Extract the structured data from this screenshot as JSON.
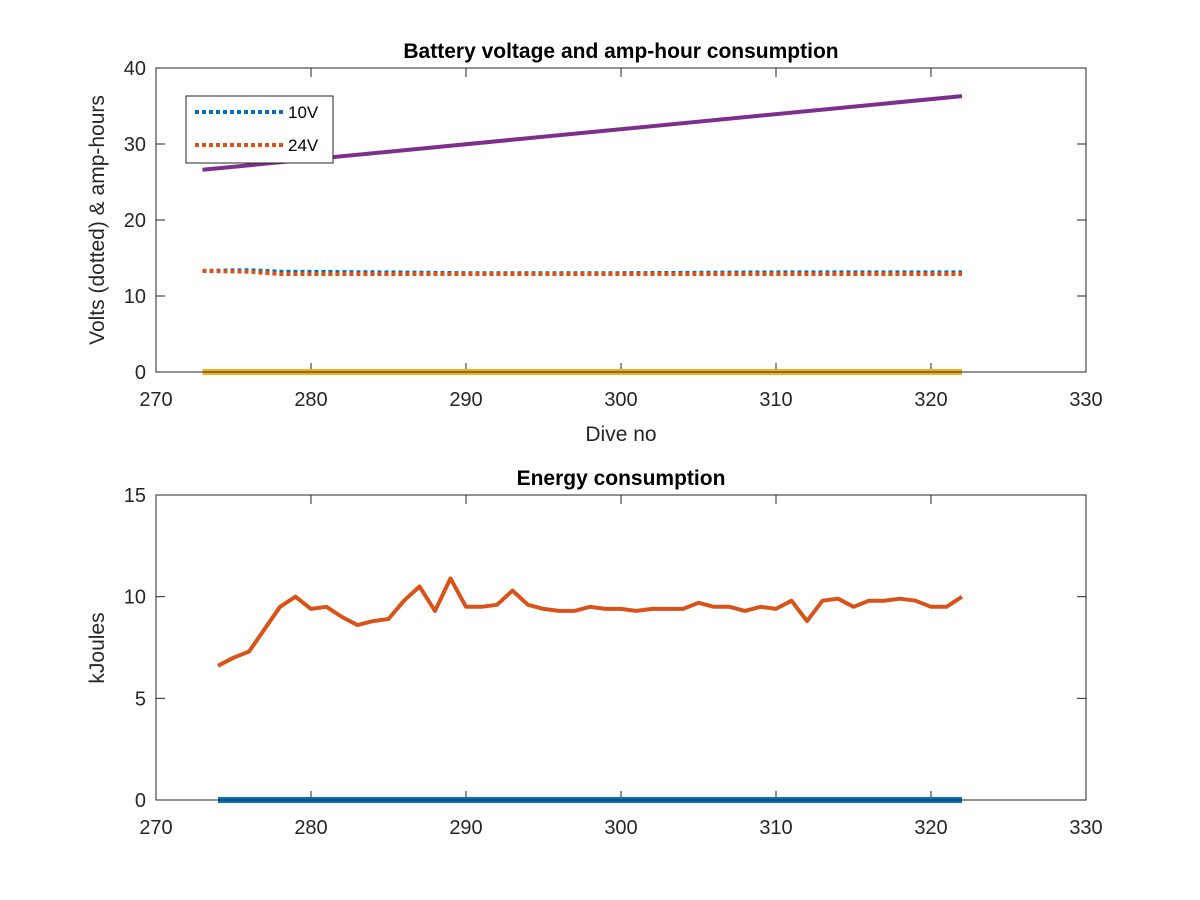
{
  "chart_data": [
    {
      "type": "line",
      "title": "Battery voltage and amp-hour consumption",
      "xlabel": "Dive no",
      "ylabel": "Volts (dotted) & amp-hours",
      "xlim": [
        270,
        330
      ],
      "ylim": [
        0,
        40
      ],
      "xticks": [
        270,
        280,
        290,
        300,
        310,
        320,
        330
      ],
      "yticks": [
        0,
        10,
        20,
        30,
        40
      ],
      "grid": false,
      "legend_position": "top-left",
      "series": [
        {
          "name": "10V",
          "style": "dotted",
          "color": "#0072BD",
          "x": [
            273,
            276,
            278,
            285,
            290,
            300,
            310,
            322
          ],
          "y": [
            13.3,
            13.4,
            13.2,
            13.1,
            13.0,
            13.0,
            13.1,
            13.1
          ]
        },
        {
          "name": "24V",
          "style": "dotted",
          "color": "#D95319",
          "x": [
            273,
            276,
            278,
            285,
            290,
            300,
            310,
            322
          ],
          "y": [
            13.3,
            13.2,
            12.9,
            12.9,
            12.9,
            12.9,
            12.9,
            12.9
          ]
        },
        {
          "style": "solid",
          "color": "#7E2F8E",
          "x": [
            273,
            322
          ],
          "y": [
            26.6,
            36.3
          ]
        },
        {
          "style": "solid",
          "color": "#EDB120",
          "x": [
            273,
            322
          ],
          "y": [
            0,
            0
          ]
        }
      ]
    },
    {
      "type": "line",
      "title": "Energy consumption",
      "xlabel": "",
      "ylabel": "kJoules",
      "xlim": [
        270,
        330
      ],
      "ylim": [
        0,
        15
      ],
      "xticks": [
        270,
        280,
        290,
        300,
        310,
        320,
        330
      ],
      "yticks": [
        0,
        5,
        10,
        15
      ],
      "grid": false,
      "series": [
        {
          "style": "solid",
          "color": "#0072BD",
          "x": [
            274,
            322
          ],
          "y": [
            0,
            0
          ]
        },
        {
          "style": "solid",
          "color": "#D95319",
          "x": [
            274,
            275,
            276,
            277,
            278,
            279,
            280,
            281,
            282,
            283,
            284,
            285,
            286,
            287,
            288,
            289,
            290,
            291,
            292,
            293,
            294,
            295,
            296,
            297,
            298,
            299,
            300,
            301,
            302,
            303,
            304,
            305,
            306,
            307,
            308,
            309,
            310,
            311,
            312,
            313,
            314,
            315,
            316,
            317,
            318,
            319,
            320,
            321,
            322
          ],
          "y": [
            6.6,
            7.0,
            7.3,
            8.4,
            9.5,
            10.0,
            9.4,
            9.5,
            9.0,
            8.6,
            8.8,
            8.9,
            9.8,
            10.5,
            9.3,
            10.9,
            9.5,
            9.5,
            9.6,
            10.3,
            9.6,
            9.4,
            9.3,
            9.3,
            9.5,
            9.4,
            9.4,
            9.3,
            9.4,
            9.4,
            9.4,
            9.7,
            9.5,
            9.5,
            9.3,
            9.5,
            9.4,
            9.8,
            8.8,
            9.8,
            9.9,
            9.5,
            9.8,
            9.8,
            9.9,
            9.8,
            9.5,
            9.5,
            10.0
          ]
        }
      ]
    }
  ]
}
